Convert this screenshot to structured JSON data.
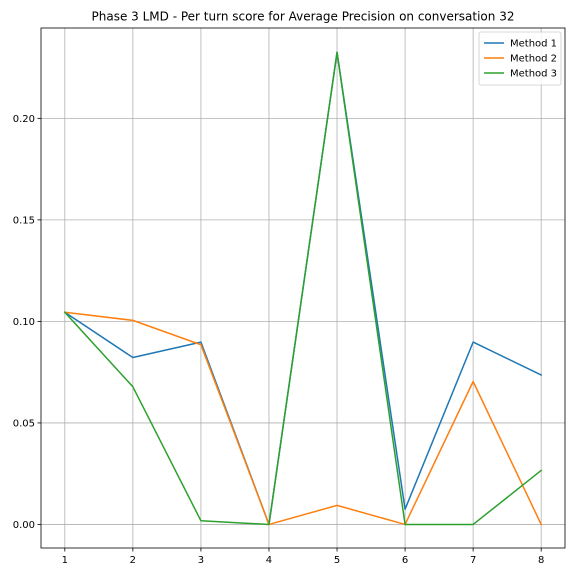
{
  "chart_data": {
    "type": "line",
    "title": "Phase 3 LMD - Per turn score for Average Precision on conversation 32",
    "xlabel": "",
    "ylabel": "",
    "x": [
      1,
      2,
      3,
      4,
      5,
      6,
      7,
      8
    ],
    "xlim": [
      0.65,
      8.35
    ],
    "ylim": [
      -0.0116,
      0.2445
    ],
    "xticks": [
      1,
      2,
      3,
      4,
      5,
      6,
      7,
      8
    ],
    "yticks": [
      0.0,
      0.05,
      0.1,
      0.15,
      0.2
    ],
    "ytick_labels": [
      "0.00",
      "0.05",
      "0.10",
      "0.15",
      "0.20"
    ],
    "grid": true,
    "legend_position": "top-right",
    "series": [
      {
        "name": "Method 1",
        "color": "#1f77b4",
        "values": [
          0.1045,
          0.0822,
          0.0898,
          0.0,
          0.2325,
          0.0075,
          0.0898,
          0.0736
        ]
      },
      {
        "name": "Method 2",
        "color": "#ff7f0e",
        "values": [
          0.1045,
          0.1005,
          0.0885,
          0.0,
          0.0094,
          0.0,
          0.0704,
          0.0
        ]
      },
      {
        "name": "Method 3",
        "color": "#2ca02c",
        "values": [
          0.1045,
          0.0678,
          0.0018,
          0.0,
          0.2325,
          0.0,
          0.0,
          0.0266
        ]
      }
    ]
  }
}
